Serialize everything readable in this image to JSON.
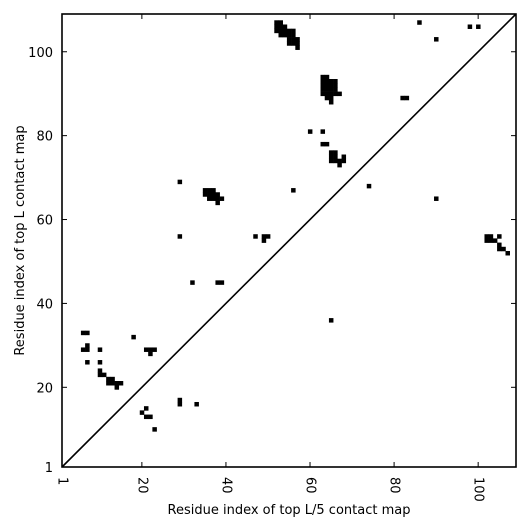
{
  "chart_data": {
    "type": "scatter",
    "title": "",
    "xlabel": "Residue index of top L/5 contact map",
    "ylabel": "Residue index of top L contact map",
    "xlim": [
      1,
      109
    ],
    "ylim": [
      1,
      109
    ],
    "xticks": [
      1,
      20,
      40,
      60,
      80,
      100
    ],
    "yticks": [
      1,
      20,
      40,
      60,
      80,
      100
    ],
    "grid": false,
    "marker": "square",
    "color": "#000000",
    "diagonal": {
      "from": [
        1,
        1
      ],
      "to": [
        109,
        109
      ]
    },
    "points": [
      [
        52,
        107
      ],
      [
        53,
        107
      ],
      [
        52,
        106
      ],
      [
        53,
        106
      ],
      [
        54,
        106
      ],
      [
        52,
        105
      ],
      [
        53,
        105
      ],
      [
        54,
        105
      ],
      [
        55,
        105
      ],
      [
        56,
        105
      ],
      [
        53,
        104
      ],
      [
        54,
        104
      ],
      [
        55,
        104
      ],
      [
        56,
        104
      ],
      [
        55,
        103
      ],
      [
        56,
        103
      ],
      [
        57,
        103
      ],
      [
        55,
        102
      ],
      [
        56,
        102
      ],
      [
        57,
        102
      ],
      [
        57,
        101
      ],
      [
        86,
        107
      ],
      [
        98,
        106
      ],
      [
        100,
        106
      ],
      [
        90,
        103
      ],
      [
        63,
        94
      ],
      [
        64,
        94
      ],
      [
        63,
        93
      ],
      [
        64,
        93
      ],
      [
        65,
        93
      ],
      [
        66,
        93
      ],
      [
        63,
        92
      ],
      [
        64,
        92
      ],
      [
        65,
        92
      ],
      [
        66,
        92
      ],
      [
        63,
        91
      ],
      [
        64,
        91
      ],
      [
        65,
        91
      ],
      [
        66,
        91
      ],
      [
        63,
        90
      ],
      [
        64,
        90
      ],
      [
        65,
        90
      ],
      [
        66,
        90
      ],
      [
        67,
        90
      ],
      [
        64,
        89
      ],
      [
        65,
        89
      ],
      [
        65,
        88
      ],
      [
        82,
        89
      ],
      [
        83,
        89
      ],
      [
        60,
        81
      ],
      [
        63,
        81
      ],
      [
        63,
        78
      ],
      [
        64,
        78
      ],
      [
        65,
        76
      ],
      [
        66,
        76
      ],
      [
        65,
        75
      ],
      [
        66,
        75
      ],
      [
        68,
        75
      ],
      [
        65,
        74
      ],
      [
        66,
        74
      ],
      [
        67,
        74
      ],
      [
        68,
        74
      ],
      [
        67,
        73
      ],
      [
        74,
        68
      ],
      [
        56,
        67
      ],
      [
        90,
        65
      ],
      [
        29,
        69
      ],
      [
        35,
        67
      ],
      [
        36,
        67
      ],
      [
        37,
        67
      ],
      [
        35,
        66
      ],
      [
        36,
        66
      ],
      [
        37,
        66
      ],
      [
        38,
        66
      ],
      [
        36,
        65
      ],
      [
        37,
        65
      ],
      [
        38,
        65
      ],
      [
        39,
        65
      ],
      [
        38,
        64
      ],
      [
        29,
        56
      ],
      [
        47,
        56
      ],
      [
        49,
        56
      ],
      [
        50,
        56
      ],
      [
        49,
        55
      ],
      [
        102,
        56
      ],
      [
        103,
        56
      ],
      [
        105,
        56
      ],
      [
        102,
        55
      ],
      [
        103,
        55
      ],
      [
        104,
        55
      ],
      [
        105,
        54
      ],
      [
        105,
        53
      ],
      [
        106,
        53
      ],
      [
        107,
        52
      ],
      [
        32,
        45
      ],
      [
        38,
        45
      ],
      [
        39,
        45
      ],
      [
        65,
        36
      ],
      [
        6,
        33
      ],
      [
        7,
        33
      ],
      [
        18,
        32
      ],
      [
        7,
        30
      ],
      [
        6,
        29
      ],
      [
        7,
        29
      ],
      [
        10,
        29
      ],
      [
        21,
        29
      ],
      [
        22,
        29
      ],
      [
        23,
        29
      ],
      [
        22,
        28
      ],
      [
        7,
        26
      ],
      [
        10,
        26
      ],
      [
        10,
        24
      ],
      [
        10,
        23
      ],
      [
        11,
        23
      ],
      [
        12,
        22
      ],
      [
        13,
        22
      ],
      [
        12,
        21
      ],
      [
        13,
        21
      ],
      [
        14,
        21
      ],
      [
        15,
        21
      ],
      [
        14,
        20
      ],
      [
        21,
        15
      ],
      [
        20,
        14
      ],
      [
        21,
        13
      ],
      [
        22,
        13
      ],
      [
        23,
        10
      ],
      [
        29,
        17
      ],
      [
        29,
        16
      ],
      [
        33,
        16
      ]
    ]
  }
}
